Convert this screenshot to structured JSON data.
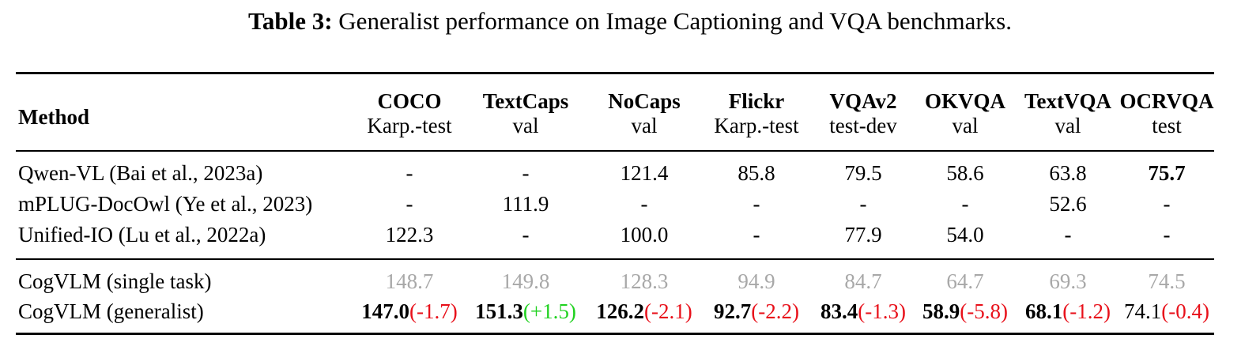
{
  "caption": {
    "label": "Table 3:",
    "text": "Generalist performance on Image Captioning and VQA benchmarks."
  },
  "table": {
    "method_header": "Method",
    "columns": [
      {
        "name": "COCO",
        "split": "Karp.-test"
      },
      {
        "name": "TextCaps",
        "split": "val"
      },
      {
        "name": "NoCaps",
        "split": "val"
      },
      {
        "name": "Flickr",
        "split": "Karp.-test"
      },
      {
        "name": "VQAv2",
        "split": "test-dev"
      },
      {
        "name": "OKVQA",
        "split": "val"
      },
      {
        "name": "TextVQA",
        "split": "val"
      },
      {
        "name": "OCRVQA",
        "split": "test"
      }
    ],
    "rows": [
      {
        "method": "Qwen-VL (Bai et al., 2023a)",
        "values": [
          "-",
          "-",
          "121.4",
          "85.8",
          "79.5",
          "58.6",
          "63.8",
          "75.7"
        ]
      },
      {
        "method": "mPLUG-DocOwl (Ye et al., 2023)",
        "values": [
          "-",
          "111.9",
          "-",
          "-",
          "-",
          "-",
          "52.6",
          "-"
        ]
      },
      {
        "method": "Unified-IO (Lu et al., 2022a)",
        "values": [
          "122.3",
          "-",
          "100.0",
          "-",
          "77.9",
          "54.0",
          "-",
          "-"
        ]
      }
    ],
    "single_task": {
      "method": "CogVLM (single task)",
      "values": [
        "148.7",
        "149.8",
        "128.3",
        "94.9",
        "84.7",
        "64.7",
        "69.3",
        "74.5"
      ]
    },
    "generalist": {
      "method": "CogVLM (generalist)",
      "values": [
        "147.0",
        "151.3",
        "126.2",
        "92.7",
        "83.4",
        "58.9",
        "68.1",
        "74.1"
      ],
      "deltas": [
        "(-1.7)",
        "(+1.5)",
        "(-2.1)",
        "(-2.2)",
        "(-1.3)",
        "(-5.8)",
        "(-1.2)",
        "(-0.4)"
      ]
    }
  },
  "colors": {
    "single_task_text": "#a8a8a8",
    "delta_negative": "#e8101a",
    "delta_positive": "#1fd11f"
  }
}
